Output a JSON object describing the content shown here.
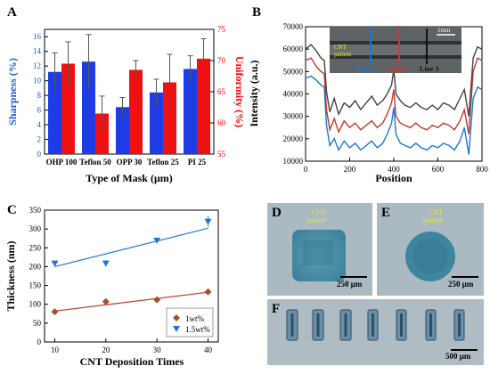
{
  "colors": {
    "blue": "#1a5fd6",
    "red": "#ff0000",
    "dark_red": "#b22222",
    "black": "#000000",
    "bar_blue": "#1e3ce6",
    "bar_red": "#ee1111",
    "brown": "#a0522d",
    "line_red": "#c0392b",
    "line_blue": "#1f77d4",
    "photo_bg": "#a9b8c0",
    "cnt_pattern": "#4f90a8",
    "yellow": "#e8e82a"
  },
  "panel_letters": {
    "a": "A",
    "b": "B",
    "c": "C",
    "d": "D",
    "e": "E",
    "f": "F"
  },
  "chart_data": [
    {
      "id": "A",
      "type": "bar",
      "categories": [
        "OHP 100",
        "Teflon 50",
        "OPP 30",
        "Teflon 25",
        "PI 25"
      ],
      "series": [
        {
          "name": "Sharpness (%)",
          "axis": "left",
          "values": [
            11.2,
            12.6,
            6.4,
            8.4,
            11.6
          ],
          "errors": [
            2.6,
            3.7,
            1.3,
            1.8,
            1.8
          ]
        },
        {
          "name": "Uniformity (%)",
          "axis": "right",
          "values": [
            69.5,
            61.5,
            68.5,
            66.5,
            70.3
          ],
          "errors": [
            3.5,
            2.8,
            1.5,
            4.5,
            3.2
          ]
        }
      ],
      "xlabel": "Type of Mask (μm)",
      "ylabel": "Sharpness (%)",
      "y2label": "Uniformity (%)",
      "ylim": [
        0,
        17
      ],
      "y2lim": [
        55,
        75
      ],
      "yticks": [
        "0",
        "2",
        "4",
        "6",
        "8",
        "10",
        "12",
        "14",
        "16"
      ],
      "y2ticks": [
        "55",
        "60",
        "65",
        "70",
        "75"
      ]
    },
    {
      "id": "B",
      "type": "line",
      "xlabel": "Position",
      "ylabel": "Intensity (a.u.)",
      "xlim": [
        0,
        800
      ],
      "ylim": [
        10000,
        70000
      ],
      "xticks": [
        "0",
        "200",
        "400",
        "600",
        "800"
      ],
      "yticks": [
        "10000",
        "20000",
        "30000",
        "40000",
        "50000",
        "60000",
        "70000"
      ],
      "x": [
        0,
        25,
        50,
        70,
        85,
        95,
        110,
        130,
        150,
        175,
        200,
        225,
        250,
        275,
        300,
        325,
        350,
        370,
        390,
        400,
        410,
        430,
        450,
        475,
        500,
        525,
        550,
        575,
        600,
        625,
        650,
        675,
        700,
        720,
        740,
        760,
        780,
        800
      ],
      "series": [
        {
          "name": "Line 1",
          "values": [
            47000,
            48000,
            46000,
            44000,
            43000,
            26000,
            17000,
            20000,
            15000,
            19000,
            16000,
            18000,
            15000,
            17000,
            19000,
            16000,
            18000,
            22000,
            27000,
            34000,
            22000,
            18000,
            17000,
            16000,
            18000,
            16000,
            15000,
            17000,
            16000,
            18000,
            17000,
            15000,
            19000,
            25000,
            13000,
            38000,
            43000,
            42000
          ]
        },
        {
          "name": "Line 2",
          "values": [
            55000,
            56000,
            52000,
            50000,
            49000,
            33000,
            24000,
            29000,
            23000,
            28000,
            25000,
            27000,
            24000,
            26000,
            28000,
            25000,
            27000,
            31000,
            36000,
            42000,
            30000,
            27000,
            26000,
            25000,
            27000,
            25000,
            24000,
            26000,
            25000,
            27000,
            26000,
            24000,
            28000,
            33000,
            22000,
            50000,
            56000,
            55000
          ]
        },
        {
          "name": "Line 3",
          "values": [
            60000,
            62000,
            59000,
            56000,
            55000,
            41000,
            32000,
            38000,
            31000,
            36000,
            34000,
            37000,
            33000,
            36000,
            39000,
            35000,
            37000,
            40000,
            44000,
            51000,
            40000,
            37000,
            35000,
            34000,
            36000,
            34000,
            33000,
            35000,
            33000,
            36000,
            35000,
            33000,
            38000,
            42000,
            30000,
            56000,
            61000,
            60000
          ]
        }
      ],
      "inset_labels": {
        "cnt": "CNT",
        "pattern": "pattern",
        "scale": "1mm",
        "line1": "Line 1",
        "line2": "Line 2",
        "line3": "Line 3"
      }
    },
    {
      "id": "C",
      "type": "scatter",
      "xlabel": "CNT Deposition Times",
      "ylabel": "Thickness (nm)",
      "xlim": [
        8,
        42
      ],
      "ylim": [
        0,
        350
      ],
      "xticks": [
        "10",
        "20",
        "30",
        "40"
      ],
      "yticks": [
        "0",
        "50",
        "100",
        "150",
        "200",
        "250",
        "300",
        "350"
      ],
      "series": [
        {
          "name": "1wt%",
          "x": [
            10,
            20,
            30,
            40
          ],
          "values": [
            80,
            107,
            112,
            133
          ],
          "errors": [
            4,
            5,
            4,
            5
          ],
          "fit": [
            [
              10,
              82
            ],
            [
              40,
              132
            ]
          ]
        },
        {
          "name": "1.5wt%",
          "x": [
            10,
            20,
            30,
            40
          ],
          "values": [
            209,
            209,
            270,
            320
          ],
          "errors": [
            5,
            8,
            6,
            14
          ],
          "fit": [
            [
              10,
              200
            ],
            [
              40,
              302
            ]
          ]
        }
      ],
      "legend_position": "bottom-right"
    }
  ],
  "photos": {
    "d": {
      "cnt": "CNT",
      "pattern": "pattern",
      "scale": "250 μm"
    },
    "e": {
      "cnt": "CNT",
      "pattern": "pattern",
      "scale": "250 μm"
    },
    "f": {
      "scale": "500 μm"
    }
  }
}
